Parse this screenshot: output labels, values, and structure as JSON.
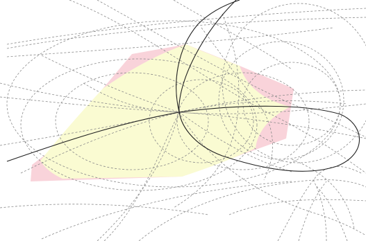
{
  "colors": {
    "background": "#ffffff",
    "outer_region_fill": "#f9d3da",
    "inner_region_fill": "#fafbd2",
    "construction_line": "#8a8a8a",
    "main_curve": "#222222"
  }
}
